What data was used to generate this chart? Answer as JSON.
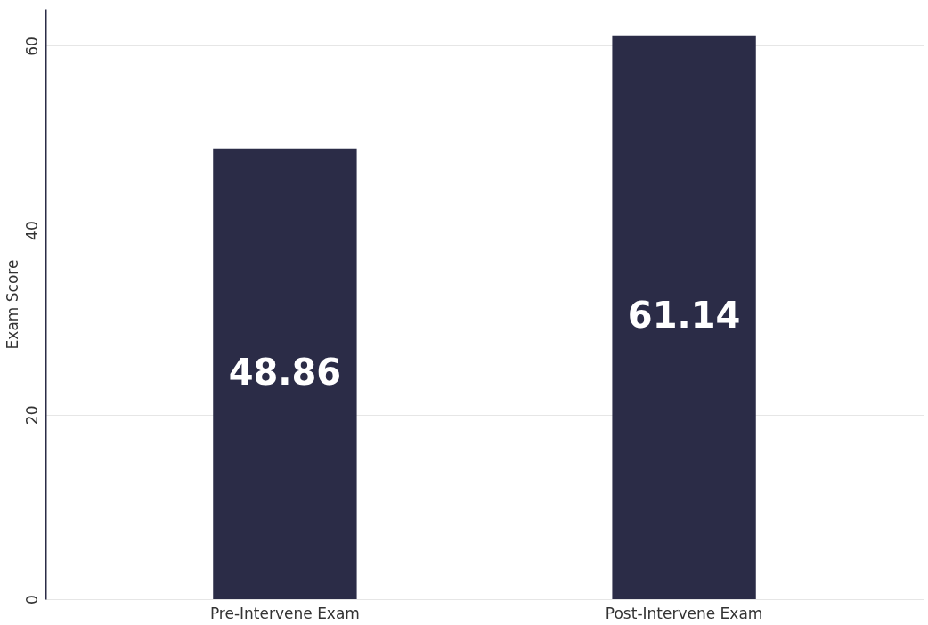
{
  "chart_data": {
    "type": "bar",
    "ylabel": "Exam Score",
    "categories": [
      "Pre-Intervene Exam",
      "Post-Intervene Exam"
    ],
    "values": [
      48.86,
      61.14
    ],
    "color": "#2b2c47",
    "ylim": [
      0,
      64
    ],
    "yticks": [
      0,
      20,
      40,
      60
    ],
    "grid": "y",
    "data_labels": true
  }
}
